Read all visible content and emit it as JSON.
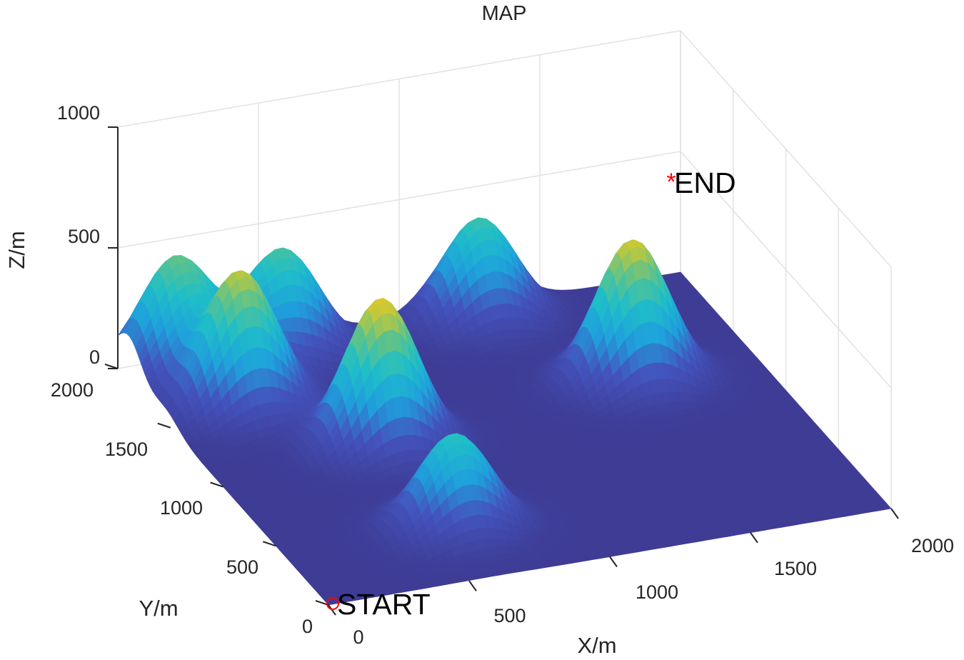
{
  "chart_data": {
    "type": "surface3d",
    "title": "MAP",
    "xlabel": "X/m",
    "ylabel": "Y/m",
    "zlabel": "Z/m",
    "xlim": [
      0,
      2000
    ],
    "ylim": [
      0,
      2000
    ],
    "zlim": [
      0,
      1000
    ],
    "x_ticks": [
      "0",
      "500",
      "1000",
      "1500",
      "2000"
    ],
    "y_ticks": [
      "0",
      "500",
      "1000",
      "1500",
      "2000"
    ],
    "z_ticks": [
      "0",
      "500",
      "1000"
    ],
    "grid": true,
    "colormap": "parula",
    "colors": {
      "low": "#3e3c95",
      "mid_blue": "#1fb4e0",
      "mid_green": "#5ec28e",
      "high": "#f9e31a",
      "marker": "#ff0000"
    },
    "peaks": [
      {
        "x": 600,
        "y": 400,
        "height": 390
      },
      {
        "x": 600,
        "y": 1100,
        "height": 610
      },
      {
        "x": 270,
        "y": 1550,
        "height": 560
      },
      {
        "x": 170,
        "y": 1900,
        "height": 470
      },
      {
        "x": 550,
        "y": 1900,
        "height": 430
      },
      {
        "x": 1550,
        "y": 1250,
        "height": 590
      },
      {
        "x": 1250,
        "y": 1900,
        "height": 420
      }
    ],
    "points": [
      {
        "label": "START",
        "x": 0,
        "y": 0,
        "z": 0,
        "marker": "circle"
      },
      {
        "label": "END",
        "x": 2000,
        "y": 2000,
        "z": 800,
        "marker": "asterisk"
      }
    ]
  }
}
